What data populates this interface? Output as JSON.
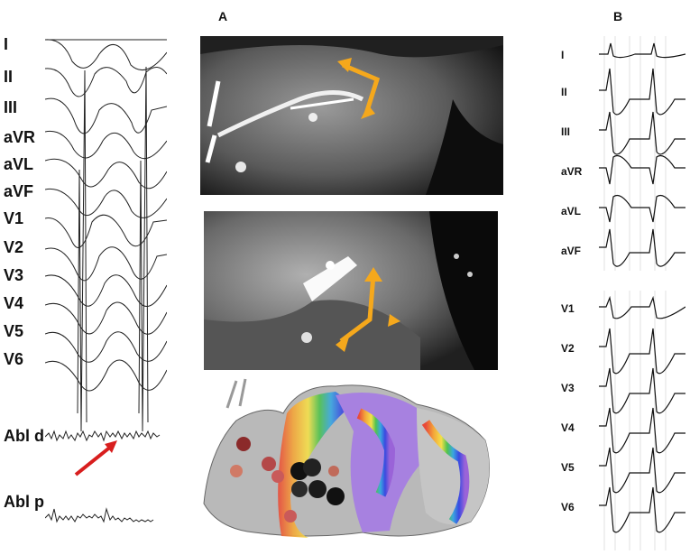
{
  "panels": {
    "a": {
      "letter": "A"
    },
    "b": {
      "letter": "B"
    }
  },
  "left_leads": [
    "I",
    "II",
    "III",
    "aVR",
    "aVL",
    "aVF",
    "V1",
    "V2",
    "V3",
    "V4",
    "V5",
    "V6"
  ],
  "left_channels": {
    "abl_d": "Abl d",
    "abl_p": "Abl p"
  },
  "right_limb_leads": [
    "I",
    "II",
    "III",
    "aVR",
    "aVL",
    "aVF"
  ],
  "right_precordial_leads": [
    "V1",
    "V2",
    "V3",
    "V4",
    "V5",
    "V6"
  ],
  "colors": {
    "arrow": "#f5a81c",
    "red_arrow": "#d81e1e"
  },
  "icons": {
    "arrows": "orange-double-headed-arrow",
    "pointer": "red-arrow"
  }
}
